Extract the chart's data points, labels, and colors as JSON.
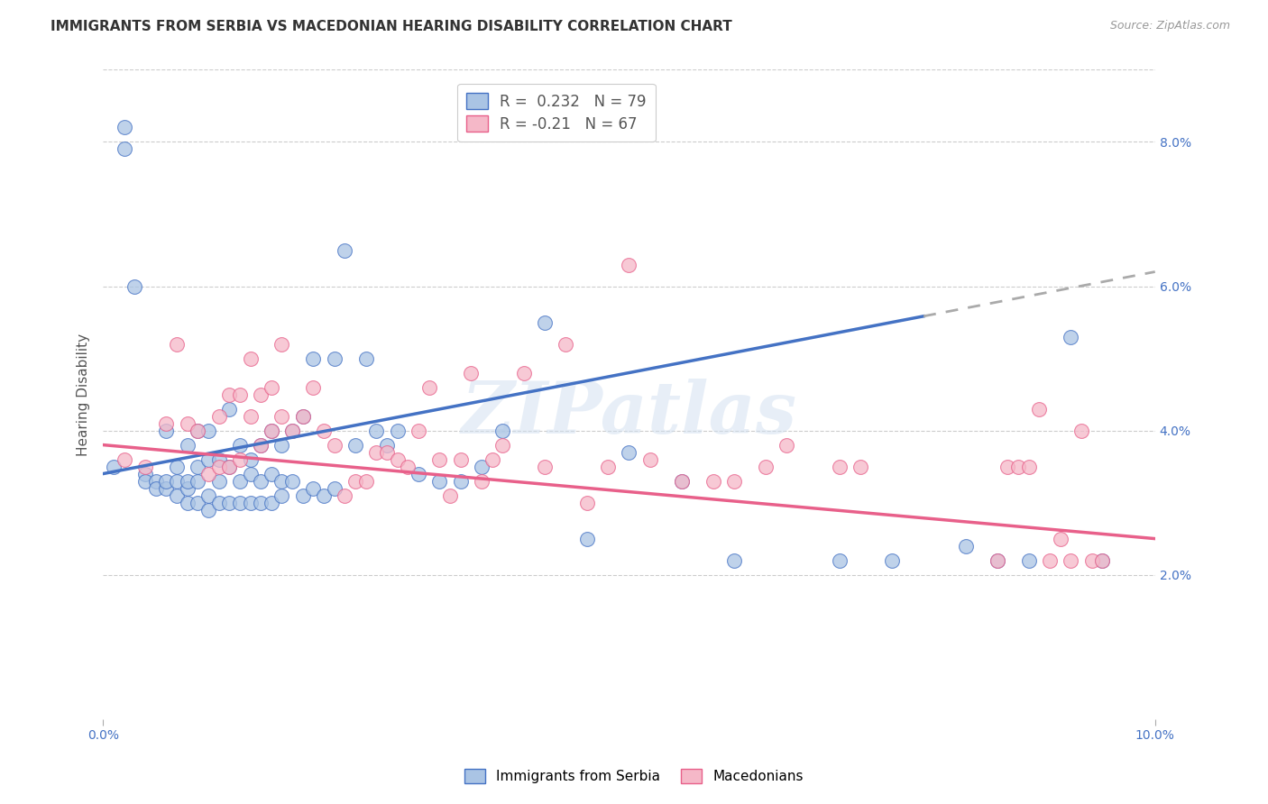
{
  "title": "IMMIGRANTS FROM SERBIA VS MACEDONIAN HEARING DISABILITY CORRELATION CHART",
  "source": "Source: ZipAtlas.com",
  "ylabel": "Hearing Disability",
  "R1": 0.232,
  "N1": 79,
  "R2": -0.21,
  "N2": 67,
  "color1": "#aac4e4",
  "color2": "#f5b8c8",
  "line_color1": "#4472c4",
  "line_color2": "#e8608a",
  "legend_label1": "Immigrants from Serbia",
  "legend_label2": "Macedonians",
  "serbia_x": [
    0.001,
    0.002,
    0.002,
    0.003,
    0.004,
    0.004,
    0.005,
    0.005,
    0.006,
    0.006,
    0.006,
    0.007,
    0.007,
    0.007,
    0.008,
    0.008,
    0.008,
    0.008,
    0.009,
    0.009,
    0.009,
    0.009,
    0.01,
    0.01,
    0.01,
    0.01,
    0.011,
    0.011,
    0.011,
    0.012,
    0.012,
    0.012,
    0.013,
    0.013,
    0.013,
    0.014,
    0.014,
    0.014,
    0.015,
    0.015,
    0.015,
    0.016,
    0.016,
    0.016,
    0.017,
    0.017,
    0.017,
    0.018,
    0.018,
    0.019,
    0.019,
    0.02,
    0.02,
    0.021,
    0.022,
    0.022,
    0.023,
    0.024,
    0.025,
    0.026,
    0.027,
    0.028,
    0.03,
    0.032,
    0.034,
    0.036,
    0.038,
    0.042,
    0.046,
    0.05,
    0.055,
    0.06,
    0.07,
    0.075,
    0.082,
    0.085,
    0.088,
    0.092,
    0.095
  ],
  "serbia_y": [
    0.035,
    0.082,
    0.079,
    0.06,
    0.034,
    0.033,
    0.033,
    0.032,
    0.032,
    0.033,
    0.04,
    0.031,
    0.033,
    0.035,
    0.03,
    0.032,
    0.033,
    0.038,
    0.03,
    0.033,
    0.035,
    0.04,
    0.029,
    0.031,
    0.036,
    0.04,
    0.03,
    0.033,
    0.036,
    0.03,
    0.035,
    0.043,
    0.03,
    0.033,
    0.038,
    0.03,
    0.034,
    0.036,
    0.03,
    0.033,
    0.038,
    0.03,
    0.034,
    0.04,
    0.031,
    0.033,
    0.038,
    0.033,
    0.04,
    0.031,
    0.042,
    0.032,
    0.05,
    0.031,
    0.032,
    0.05,
    0.065,
    0.038,
    0.05,
    0.04,
    0.038,
    0.04,
    0.034,
    0.033,
    0.033,
    0.035,
    0.04,
    0.055,
    0.025,
    0.037,
    0.033,
    0.022,
    0.022,
    0.022,
    0.024,
    0.022,
    0.022,
    0.053,
    0.022
  ],
  "mac_x": [
    0.002,
    0.004,
    0.006,
    0.007,
    0.008,
    0.009,
    0.01,
    0.011,
    0.011,
    0.012,
    0.012,
    0.013,
    0.013,
    0.014,
    0.014,
    0.015,
    0.015,
    0.016,
    0.016,
    0.017,
    0.017,
    0.018,
    0.019,
    0.02,
    0.021,
    0.022,
    0.023,
    0.024,
    0.025,
    0.026,
    0.027,
    0.028,
    0.029,
    0.03,
    0.031,
    0.032,
    0.033,
    0.034,
    0.035,
    0.036,
    0.037,
    0.038,
    0.04,
    0.042,
    0.044,
    0.046,
    0.048,
    0.05,
    0.052,
    0.055,
    0.058,
    0.06,
    0.063,
    0.065,
    0.07,
    0.072,
    0.085,
    0.086,
    0.087,
    0.088,
    0.089,
    0.09,
    0.091,
    0.092,
    0.093,
    0.094,
    0.095
  ],
  "mac_y": [
    0.036,
    0.035,
    0.041,
    0.052,
    0.041,
    0.04,
    0.034,
    0.035,
    0.042,
    0.035,
    0.045,
    0.045,
    0.036,
    0.05,
    0.042,
    0.038,
    0.045,
    0.04,
    0.046,
    0.042,
    0.052,
    0.04,
    0.042,
    0.046,
    0.04,
    0.038,
    0.031,
    0.033,
    0.033,
    0.037,
    0.037,
    0.036,
    0.035,
    0.04,
    0.046,
    0.036,
    0.031,
    0.036,
    0.048,
    0.033,
    0.036,
    0.038,
    0.048,
    0.035,
    0.052,
    0.03,
    0.035,
    0.063,
    0.036,
    0.033,
    0.033,
    0.033,
    0.035,
    0.038,
    0.035,
    0.035,
    0.022,
    0.035,
    0.035,
    0.035,
    0.043,
    0.022,
    0.025,
    0.022,
    0.04,
    0.022,
    0.022
  ],
  "xlim": [
    0.0,
    0.1
  ],
  "ylim": [
    0.0,
    0.09
  ],
  "right_ytick_vals": [
    0.02,
    0.04,
    0.06,
    0.08
  ],
  "right_ytick_labels": [
    "2.0%",
    "4.0%",
    "6.0%",
    "8.0%"
  ],
  "line1_x0": 0.0,
  "line1_y0": 0.034,
  "line1_x1": 0.1,
  "line1_y1": 0.062,
  "line2_x0": 0.0,
  "line2_y0": 0.038,
  "line2_x1": 0.1,
  "line2_y1": 0.025
}
